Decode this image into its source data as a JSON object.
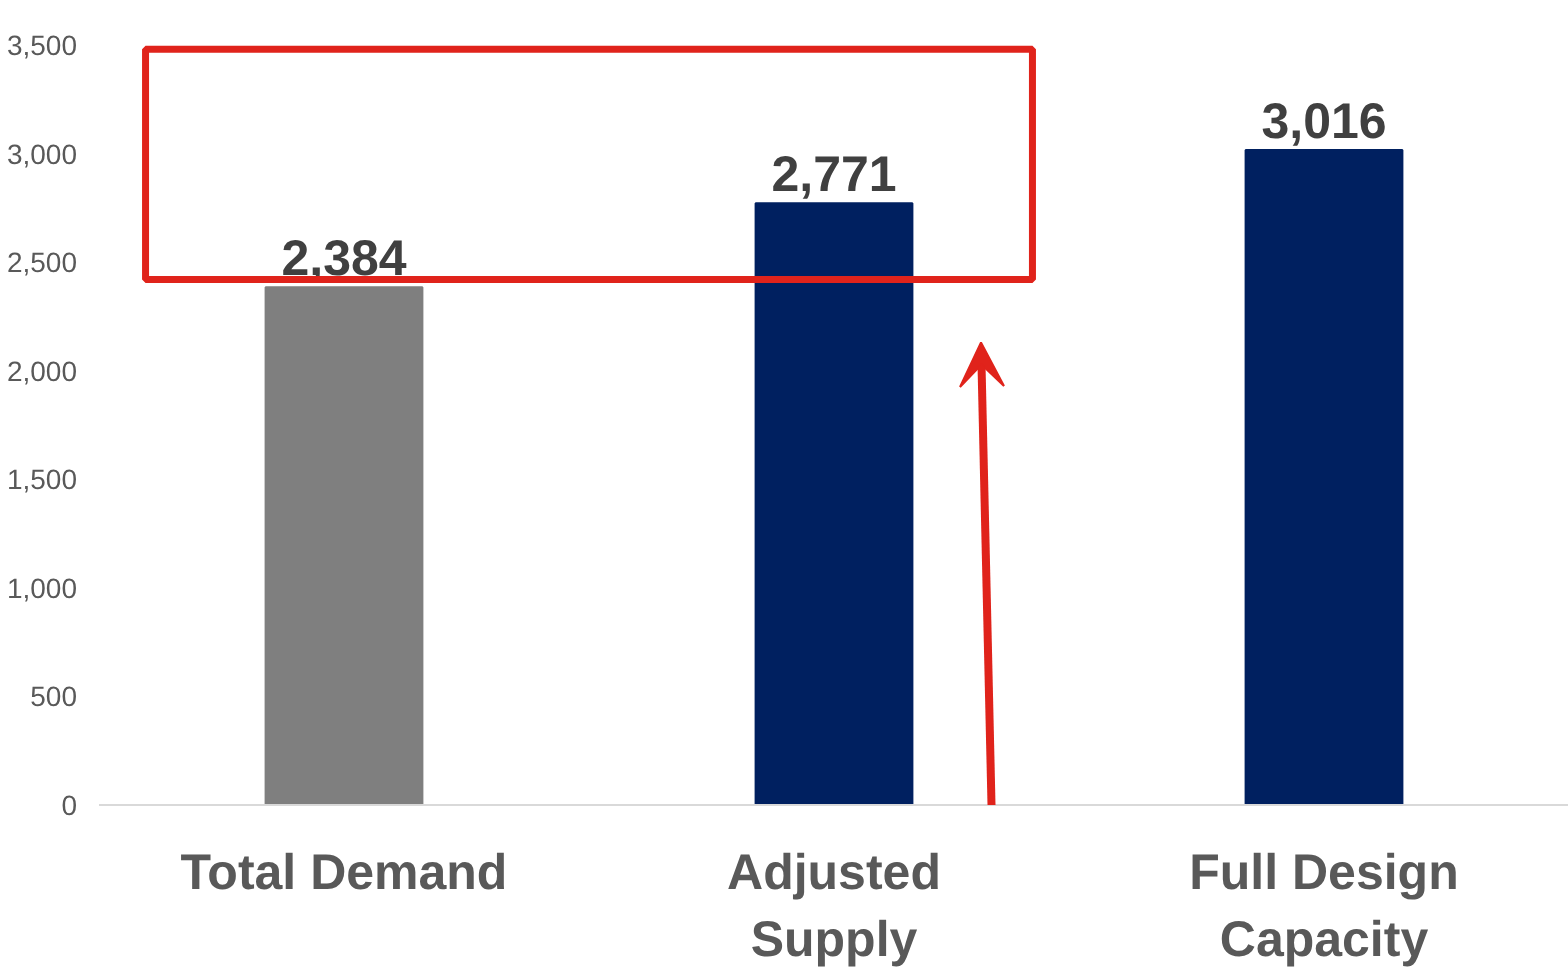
{
  "chart_data": {
    "type": "bar",
    "categories": [
      "Total Demand",
      "Adjusted Supply",
      "Full Design Capacity"
    ],
    "values": [
      2384,
      2771,
      3016
    ],
    "colors": [
      "#7f7f7f",
      "#002060",
      "#002060"
    ],
    "value_labels": [
      "2,384",
      "2,771",
      "3,016"
    ],
    "ylim": [
      0,
      3500
    ],
    "yticks": [
      {
        "value": 0,
        "label": "0"
      },
      {
        "value": 500,
        "label": "500"
      },
      {
        "value": 1000,
        "label": "1,000"
      },
      {
        "value": 1500,
        "label": "1,500"
      },
      {
        "value": 2000,
        "label": "2,000"
      },
      {
        "value": 2500,
        "label": "2,500"
      },
      {
        "value": 3000,
        "label": "3,000"
      },
      {
        "value": 3500,
        "label": "3,500"
      }
    ],
    "grid": false
  }
}
